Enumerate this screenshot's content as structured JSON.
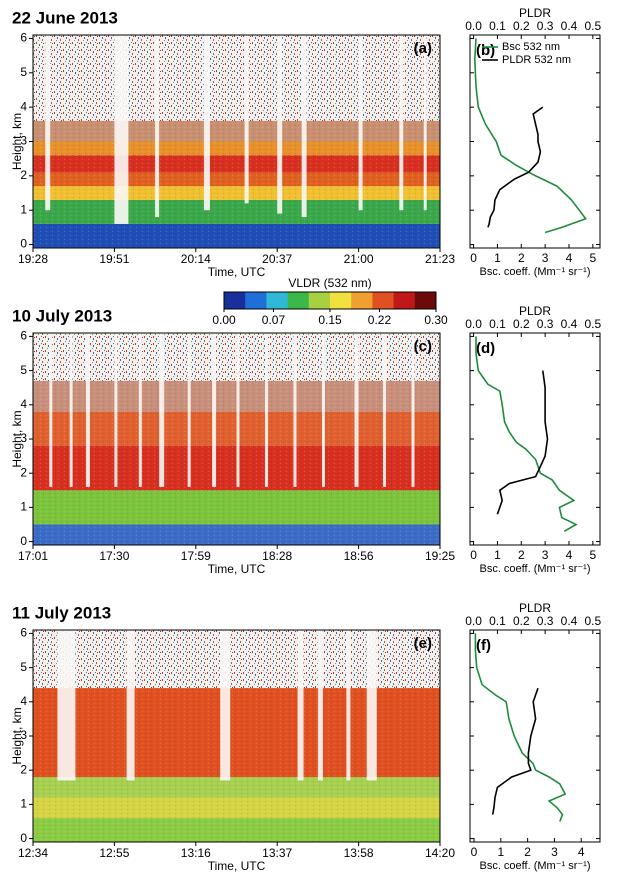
{
  "chart_data": [
    {
      "type": "heatmap",
      "title": "22 June 2013",
      "label": "(a)",
      "categories": [
        "19:28",
        "19:51",
        "20:14",
        "20:37",
        "21:00",
        "21:23"
      ],
      "xlabel": "Time, UTC",
      "ylabel": "Height, km",
      "ylim": [
        -0.1,
        6.1
      ],
      "yticks": [
        0,
        1,
        2,
        3,
        4,
        5,
        6
      ]
    },
    {
      "type": "profile",
      "label": "(b)",
      "xlabel": "Bsc. coeff. (Mm⁻¹ sr⁻¹)",
      "x2label": "PLDR",
      "xlim": [
        -0.15,
        5.3
      ],
      "xticks": [
        0,
        1,
        2,
        3,
        4,
        5
      ],
      "x2lim": [
        -0.015,
        0.53
      ],
      "x2ticks": [
        {
          "value": 0,
          "label": "0.0"
        },
        0.1,
        0.2,
        0.3,
        0.4,
        0.5
      ],
      "ylim": [
        -0.1,
        6.1
      ],
      "yticks": [
        0,
        1,
        2,
        3,
        4,
        5,
        6
      ],
      "legend": "upper right",
      "series": [
        {
          "name": "Bsc 532 nm",
          "color": "#1e8c3c",
          "values": [
            0.1,
            0.05,
            0.1,
            0.2,
            0.5,
            0.95,
            1.15,
            1.8,
            2.6,
            3.5,
            4.1,
            4.7,
            3.7,
            3.0
          ],
          "y": [
            6.0,
            5.4,
            4.6,
            4.0,
            3.5,
            3.0,
            2.6,
            2.3,
            2.0,
            1.7,
            1.3,
            0.75,
            0.5,
            0.35
          ]
        },
        {
          "name": "PLDR 532 nm",
          "color": "#000000",
          "axis": "x2",
          "values": [
            0.29,
            0.25,
            0.26,
            0.27,
            0.27,
            0.28,
            0.27,
            0.23,
            0.17,
            0.11,
            0.09,
            0.085,
            0.07,
            0.065,
            0.06
          ],
          "y": [
            4.0,
            3.8,
            3.5,
            3.2,
            3.0,
            2.7,
            2.4,
            2.1,
            1.9,
            1.6,
            1.3,
            1.0,
            0.8,
            0.6,
            0.5
          ]
        }
      ]
    },
    {
      "type": "colorbar",
      "title": "VLDR (532 nm)",
      "lim": [
        0,
        0.3
      ],
      "ticks": [
        {
          "value": 0,
          "label": "0.00"
        },
        0.07,
        0.15,
        0.22,
        {
          "value": 0.3,
          "label": "0.30"
        }
      ],
      "colors": [
        "#1a2f9c",
        "#1f6fd8",
        "#2fb8d8",
        "#3cb84a",
        "#a8d040",
        "#f0e040",
        "#f0a030",
        "#e05020",
        "#c01818",
        "#6a0a0a"
      ]
    },
    {
      "type": "heatmap",
      "title": "10 July 2013",
      "label": "(c)",
      "categories": [
        "17:01",
        "17:30",
        "17:59",
        "18:28",
        "18:56",
        "19:25"
      ],
      "xlabel": "Time, UTC",
      "ylabel": "Height, km",
      "ylim": [
        -0.1,
        6.1
      ],
      "yticks": [
        0,
        1,
        2,
        3,
        4,
        5,
        6
      ]
    },
    {
      "type": "profile",
      "label": "(d)",
      "xlabel": "Bsc. coeff. (Mm⁻¹ sr⁻¹)",
      "x2label": "PLDR",
      "xlim": [
        -0.15,
        5.3
      ],
      "xticks": [
        0,
        1,
        2,
        3,
        4,
        5
      ],
      "x2lim": [
        -0.015,
        0.53
      ],
      "x2ticks": [
        {
          "value": 0,
          "label": "0.0"
        },
        0.1,
        0.2,
        0.3,
        0.4,
        0.5
      ],
      "ylim": [
        -0.1,
        6.1
      ],
      "yticks": [
        0,
        1,
        2,
        3,
        4,
        5,
        6
      ],
      "series": [
        {
          "color": "#1e8c3c",
          "values": [
            0.1,
            0.1,
            0.2,
            0.6,
            1.1,
            1.2,
            1.3,
            1.5,
            1.8,
            2.2,
            2.6,
            2.8,
            3.3,
            3.6,
            4.2,
            3.6,
            3.7,
            4.3,
            3.8
          ],
          "y": [
            6.0,
            5.5,
            5.0,
            4.6,
            4.4,
            4.0,
            3.5,
            3.2,
            2.9,
            2.7,
            2.4,
            2.0,
            1.8,
            1.5,
            1.2,
            1.0,
            0.7,
            0.5,
            0.3
          ]
        },
        {
          "color": "#000000",
          "axis": "x2",
          "values": [
            0.29,
            0.3,
            0.3,
            0.3,
            0.31,
            0.3,
            0.28,
            0.26,
            0.15,
            0.11,
            0.12,
            0.1
          ],
          "y": [
            5.0,
            4.5,
            4.0,
            3.5,
            3.0,
            2.5,
            2.2,
            1.9,
            1.7,
            1.5,
            1.2,
            0.8
          ]
        }
      ]
    },
    {
      "type": "heatmap",
      "title": "11 July 2013",
      "label": "(e)",
      "categories": [
        "12:34",
        "12:55",
        "13:16",
        "13:37",
        "13:58",
        "14:20"
      ],
      "xlabel": "Time, UTC",
      "ylabel": "Height, km",
      "ylim": [
        -0.1,
        6.1
      ],
      "yticks": [
        0,
        1,
        2,
        3,
        4,
        5,
        6
      ]
    },
    {
      "type": "profile",
      "label": "(f)",
      "xlabel": "Bsc. coeff. (Mm⁻¹ sr⁻¹)",
      "x2label": "PLDR",
      "xlim": [
        -0.15,
        4.7
      ],
      "xticks": [
        0,
        1,
        2,
        3,
        4
      ],
      "x2lim": [
        -0.015,
        0.53
      ],
      "x2ticks": [
        {
          "value": 0,
          "label": "0.0"
        },
        0.1,
        0.2,
        0.3,
        0.4,
        0.5
      ],
      "ylim": [
        -0.1,
        6.1
      ],
      "yticks": [
        0,
        1,
        2,
        3,
        4,
        5,
        6
      ],
      "series": [
        {
          "color": "#1e8c3c",
          "values": [
            0.05,
            0.05,
            0.1,
            0.3,
            0.8,
            1.2,
            1.3,
            1.5,
            1.8,
            2.2,
            2.3,
            2.8,
            3.2,
            3.4,
            2.8,
            3.1,
            3.3,
            3.2
          ],
          "y": [
            6.0,
            5.5,
            5.0,
            4.5,
            4.2,
            4.0,
            3.5,
            3.0,
            2.5,
            2.2,
            2.0,
            1.8,
            1.6,
            1.3,
            1.1,
            0.9,
            0.7,
            0.5
          ]
        },
        {
          "color": "#000000",
          "axis": "x2",
          "values": [
            0.27,
            0.25,
            0.26,
            0.24,
            0.23,
            0.23,
            0.24,
            0.16,
            0.1,
            0.09,
            0.085,
            0.08
          ],
          "y": [
            4.4,
            4.0,
            3.5,
            3.0,
            2.5,
            2.2,
            2.0,
            1.8,
            1.5,
            1.2,
            0.9,
            0.7
          ]
        }
      ]
    }
  ]
}
